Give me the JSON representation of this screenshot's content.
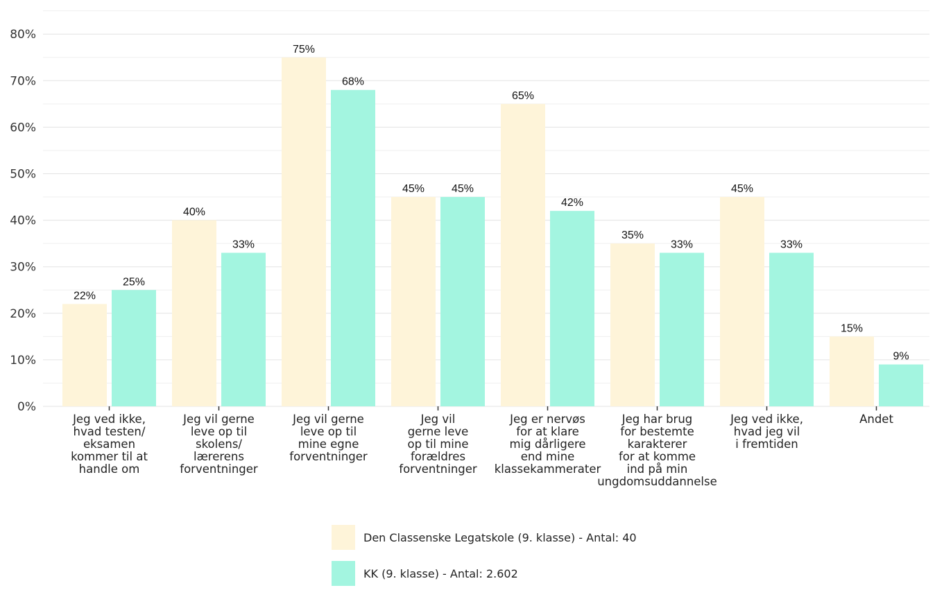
{
  "chart_data": {
    "type": "bar",
    "categories": [
      [
        "Jeg ved ikke,",
        "hvad testen/",
        "eksamen",
        "kommer til at",
        "handle om"
      ],
      [
        "Jeg vil gerne",
        "leve op til",
        "skolens/",
        "lærerens",
        "forventninger"
      ],
      [
        "Jeg vil gerne",
        "leve op til",
        "mine egne",
        "forventninger"
      ],
      [
        "Jeg vil",
        "gerne leve",
        "op til mine",
        "forældres",
        "forventninger"
      ],
      [
        "Jeg er nervøs",
        "for at klare",
        "mig dårligere",
        "end mine",
        "klassekammerater"
      ],
      [
        "Jeg har brug",
        "for bestemte",
        "karakterer",
        "for at komme",
        "ind på min",
        "ungdomsuddannelse"
      ],
      [
        "Jeg ved ikke,",
        "hvad jeg vil",
        "i fremtiden"
      ],
      [
        "Andet"
      ]
    ],
    "series": [
      {
        "name": "Den Classenske Legatskole (9. klasse) - Antal: 40",
        "color": "#FEF4D9",
        "values": [
          22,
          40,
          75,
          45,
          65,
          35,
          45,
          15
        ]
      },
      {
        "name": "KK (9. klasse) - Antal: 2.602",
        "color": "#A3F5E0",
        "values": [
          25,
          33,
          68,
          45,
          42,
          33,
          33,
          9
        ]
      }
    ],
    "value_suffix": "%",
    "ylim": [
      0,
      85
    ],
    "yticks": [
      "0%",
      "10%",
      "20%",
      "30%",
      "40%",
      "50%",
      "60%",
      "70%",
      "80%"
    ],
    "ytick_values": [
      0,
      10,
      20,
      30,
      40,
      50,
      60,
      70,
      80
    ],
    "grid": true,
    "legend_position": "bottom"
  },
  "legend": {
    "item0": "Den Classenske Legatskole (9. klasse) - Antal: 40",
    "item1": "KK (9. klasse) - Antal: 2.602"
  }
}
